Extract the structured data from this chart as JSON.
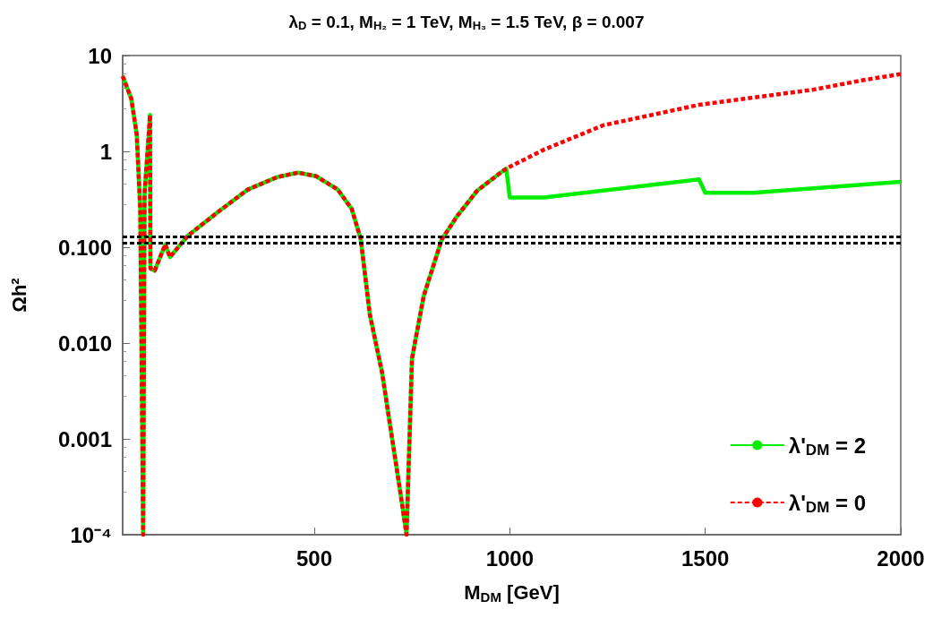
{
  "chart_data": {
    "type": "line",
    "title": "λ$_{D}$ = 0.1, M$_{H₂}$ = 1 TeV, M$_{H₃}$ = 1.5 TeV, β = 0.007",
    "xlabel": "M$_{DM}$ [GeV]",
    "ylabel": "Ωh²",
    "series": [
      {
        "name": "λ'$_{DM}$ = 2",
        "color": "#00ee00",
        "line_style": "solid",
        "x": [
          10,
          32,
          46,
          55,
          62.5,
          66,
          73,
          80,
          81,
          92,
          119,
          131,
          177,
          252,
          330,
          406,
          459,
          505,
          560,
          596,
          619,
          642,
          674,
          688,
          720,
          736,
          750,
          780,
          826,
          865,
          917,
          979,
          991,
          1000,
          1087,
          1484,
          1500,
          1622,
          2000
        ],
        "values": [
          6.1,
          3.56,
          1.5,
          0.25,
          0.0001,
          0.36,
          0.91,
          2.4,
          0.06,
          0.057,
          0.107,
          0.079,
          0.132,
          0.23,
          0.4,
          0.54,
          0.6,
          0.55,
          0.4,
          0.25,
          0.121,
          0.02,
          0.0048,
          0.002,
          0.00028,
          0.0001,
          0.0069,
          0.031,
          0.12,
          0.21,
          0.39,
          0.61,
          0.66,
          0.33,
          0.33,
          0.51,
          0.37,
          0.37,
          0.48
        ]
      },
      {
        "name": "λ'$_{DM}$ = 0",
        "color": "#ff0000",
        "line_style": "dashed",
        "x": [
          10,
          32,
          46,
          55,
          62.5,
          66,
          73,
          80,
          81,
          92,
          119,
          131,
          177,
          252,
          330,
          406,
          459,
          505,
          560,
          596,
          619,
          642,
          674,
          688,
          720,
          736,
          750,
          780,
          826,
          865,
          917,
          979,
          991,
          1087,
          1239,
          1484,
          1775,
          1900,
          2000
        ],
        "values": [
          6.1,
          3.56,
          1.5,
          0.25,
          0.0001,
          0.36,
          0.91,
          2.4,
          0.06,
          0.057,
          0.107,
          0.079,
          0.132,
          0.23,
          0.4,
          0.54,
          0.6,
          0.55,
          0.4,
          0.25,
          0.121,
          0.02,
          0.0048,
          0.002,
          0.00028,
          0.0001,
          0.0069,
          0.031,
          0.12,
          0.21,
          0.39,
          0.61,
          0.66,
          1.04,
          1.87,
          3.06,
          4.4,
          5.5,
          6.4
        ]
      }
    ],
    "xlim": [
      10,
      2000
    ],
    "xticks": [
      500,
      1000,
      1500,
      2000
    ],
    "ylim": [
      0.0001,
      10
    ],
    "yticks": [
      {
        "value": 0.0001,
        "label": "10⁻⁴"
      },
      0.001,
      {
        "value": 0.01,
        "label": "0.010"
      },
      {
        "value": 0.1,
        "label": "0.100"
      },
      1,
      10
    ],
    "log": "y",
    "grid": false,
    "legend": "bottom right",
    "marker": "none",
    "ref_lines": [
      {
        "axis": "y",
        "value": 0.128,
        "color": "#000000",
        "line_style": "dashed"
      },
      {
        "axis": "y",
        "value": 0.114,
        "color": "#000000",
        "line_style": "dashed"
      }
    ]
  }
}
